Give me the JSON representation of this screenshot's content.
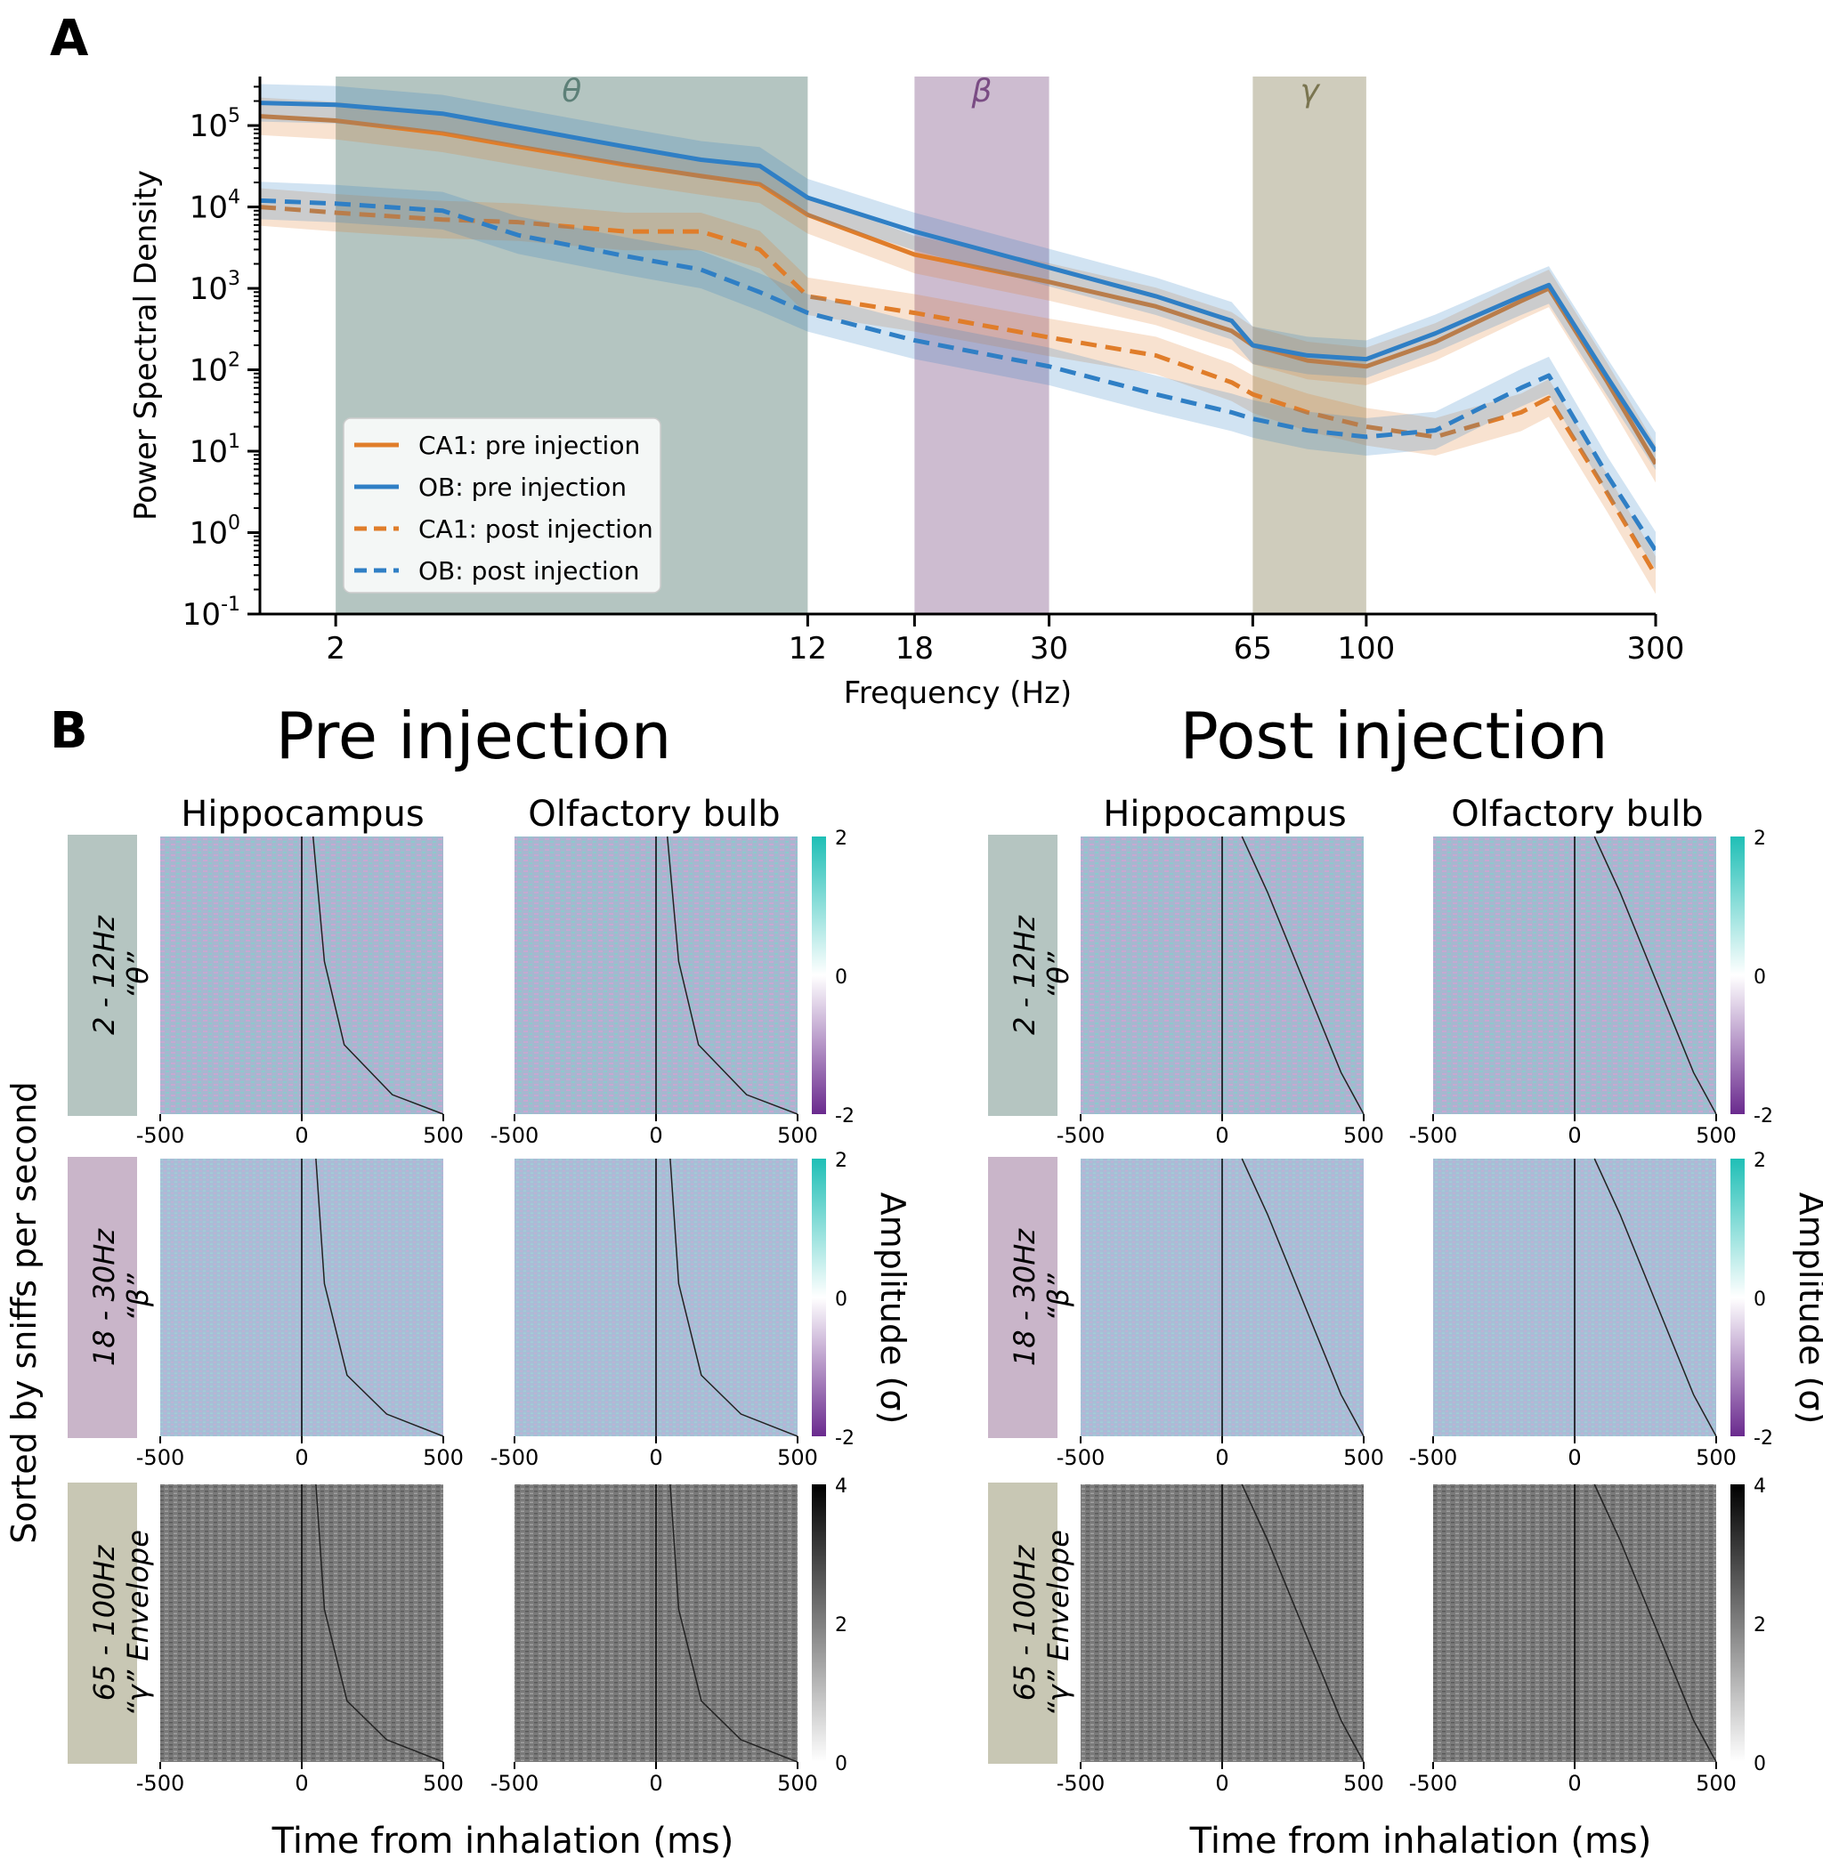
{
  "panel_a": {
    "label": "A",
    "ylabel": "Power Spectral Density",
    "xlabel": "Frequency (Hz)",
    "y_ticks": [
      {
        "base": "10",
        "exp": "-1"
      },
      {
        "base": "10",
        "exp": "0"
      },
      {
        "base": "10",
        "exp": "1"
      },
      {
        "base": "10",
        "exp": "2"
      },
      {
        "base": "10",
        "exp": "3"
      },
      {
        "base": "10",
        "exp": "4"
      },
      {
        "base": "10",
        "exp": "5"
      }
    ],
    "x_ticks": [
      "2",
      "12",
      "18",
      "30",
      "65",
      "100",
      "300"
    ],
    "bands": [
      {
        "symbol": "θ",
        "from": 2,
        "to": 12,
        "fill": "#a7bbb6",
        "text_color": "#5d8078"
      },
      {
        "symbol": "β",
        "from": 18,
        "to": 30,
        "fill": "#c4b0c8",
        "text_color": "#7a4c84"
      },
      {
        "symbol": "γ",
        "from": 65,
        "to": 100,
        "fill": "#c7c3b0",
        "text_color": "#7a7550"
      }
    ],
    "legend": [
      {
        "label": "CA1: pre injection",
        "color": "#e07d2a",
        "dash": false
      },
      {
        "label": "OB: pre injection",
        "color": "#2f7fc5",
        "dash": false
      },
      {
        "label": "CA1: post injection",
        "color": "#e07d2a",
        "dash": true
      },
      {
        "label": "OB: post injection",
        "color": "#2f7fc5",
        "dash": true
      }
    ]
  },
  "panel_b": {
    "label": "B",
    "pre_title": "Pre injection",
    "post_title": "Post injection",
    "col_titles": [
      "Hippocampus",
      "Olfactory bulb",
      "Hippocampus",
      "Olfactory bulb"
    ],
    "row_labels": [
      {
        "range": "2 - 12Hz",
        "symbol": "“θ”",
        "fill": "#b5c5c1"
      },
      {
        "range": "18 - 30Hz",
        "symbol": "“β”",
        "fill": "#c9b5c9"
      },
      {
        "range": "65 - 100Hz",
        "symbol": "“γ” Envelope",
        "fill": "#c8c7b4"
      }
    ],
    "side_label": "Sorted by sniffs per second",
    "x_ticks": [
      "-500",
      "0",
      "500"
    ],
    "xlabel": "Time from inhalation (ms)",
    "amp_label": "Amplitude (σ)",
    "colorbar_color_ticks": [
      "2",
      "0",
      "-2"
    ],
    "colorbar_gray_ticks": [
      "4",
      "2",
      "0"
    ]
  },
  "chart_data": [
    {
      "type": "line",
      "title": "",
      "xlabel": "Frequency (Hz)",
      "ylabel": "Power Spectral Density",
      "x_scale": "log",
      "y_scale": "log",
      "xlim": [
        1.5,
        300
      ],
      "ylim": [
        0.1,
        400000
      ],
      "grid": false,
      "legend_position": "lower-left",
      "x": [
        1.5,
        2,
        3,
        4,
        6,
        8,
        10,
        12,
        18,
        30,
        45,
        60,
        65,
        80,
        100,
        130,
        180,
        200,
        250,
        300
      ],
      "series": [
        {
          "name": "CA1: pre injection",
          "color": "#e07d2a",
          "dash": false,
          "values": [
            130000,
            115000,
            80000,
            55000,
            33000,
            24000,
            19000,
            8000,
            2600,
            1200,
            600,
            300,
            200,
            130,
            110,
            220,
            700,
            1000,
            70,
            7
          ]
        },
        {
          "name": "OB: pre injection",
          "color": "#2f7fc5",
          "dash": false,
          "values": [
            190000,
            180000,
            140000,
            95000,
            55000,
            38000,
            32000,
            13000,
            5000,
            1800,
            800,
            400,
            200,
            150,
            135,
            280,
            800,
            1100,
            80,
            10
          ]
        },
        {
          "name": "CA1: post injection",
          "color": "#e07d2a",
          "dash": true,
          "values": [
            10000,
            8500,
            7000,
            6500,
            5000,
            5000,
            3000,
            800,
            500,
            250,
            150,
            70,
            50,
            30,
            20,
            15,
            30,
            45,
            3,
            0.3
          ]
        },
        {
          "name": "OB: post injection",
          "color": "#2f7fc5",
          "dash": true,
          "values": [
            12000,
            11000,
            9000,
            4500,
            2500,
            1700,
            900,
            500,
            230,
            110,
            50,
            30,
            25,
            18,
            15,
            18,
            60,
            85,
            5,
            0.6
          ]
        }
      ]
    },
    {
      "type": "heatmap",
      "panel": "B",
      "x": [
        -500,
        0,
        500
      ],
      "xlabel": "Time from inhalation (ms)",
      "ylabel": "Sorted by sniffs per second",
      "rows": [
        "2 - 12Hz “θ”",
        "18 - 30Hz “β”",
        "65 - 100Hz “γ” Envelope"
      ],
      "columns": [
        "Pre injection Hippocampus",
        "Pre injection Olfactory bulb",
        "Post injection Hippocampus",
        "Post injection Olfactory bulb"
      ],
      "color_range_theta_beta": [
        -2,
        2
      ],
      "color_range_gamma": [
        0,
        4
      ]
    }
  ]
}
